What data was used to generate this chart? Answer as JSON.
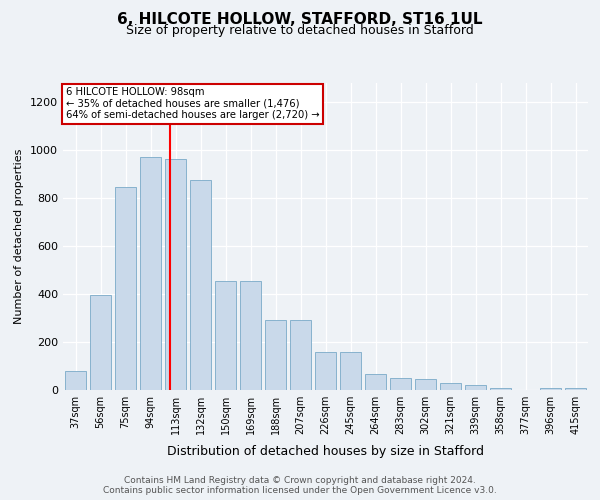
{
  "title_line1": "6, HILCOTE HOLLOW, STAFFORD, ST16 1UL",
  "title_line2": "Size of property relative to detached houses in Stafford",
  "xlabel": "Distribution of detached houses by size in Stafford",
  "ylabel": "Number of detached properties",
  "categories": [
    "37sqm",
    "56sqm",
    "75sqm",
    "94sqm",
    "113sqm",
    "132sqm",
    "150sqm",
    "169sqm",
    "188sqm",
    "207sqm",
    "226sqm",
    "245sqm",
    "264sqm",
    "283sqm",
    "302sqm",
    "321sqm",
    "339sqm",
    "358sqm",
    "377sqm",
    "396sqm",
    "415sqm"
  ],
  "values": [
    80,
    395,
    845,
    970,
    960,
    875,
    455,
    455,
    290,
    290,
    160,
    160,
    65,
    50,
    45,
    28,
    22,
    8,
    0,
    8,
    8
  ],
  "bar_color": "#c9d9ea",
  "bar_edge_color": "#7aaac8",
  "red_line_label": "6 HILCOTE HOLLOW: 98sqm",
  "annotation_line2": "← 35% of detached houses are smaller (1,476)",
  "annotation_line3": "64% of semi-detached houses are larger (2,720) →",
  "annotation_box_color": "#ffffff",
  "annotation_box_edge": "#cc0000",
  "red_line_index": 3.78,
  "ylim": [
    0,
    1280
  ],
  "yticks": [
    0,
    200,
    400,
    600,
    800,
    1000,
    1200
  ],
  "footer_line1": "Contains HM Land Registry data © Crown copyright and database right 2024.",
  "footer_line2": "Contains public sector information licensed under the Open Government Licence v3.0.",
  "background_color": "#eef2f6",
  "plot_bg_color": "#eef2f6"
}
